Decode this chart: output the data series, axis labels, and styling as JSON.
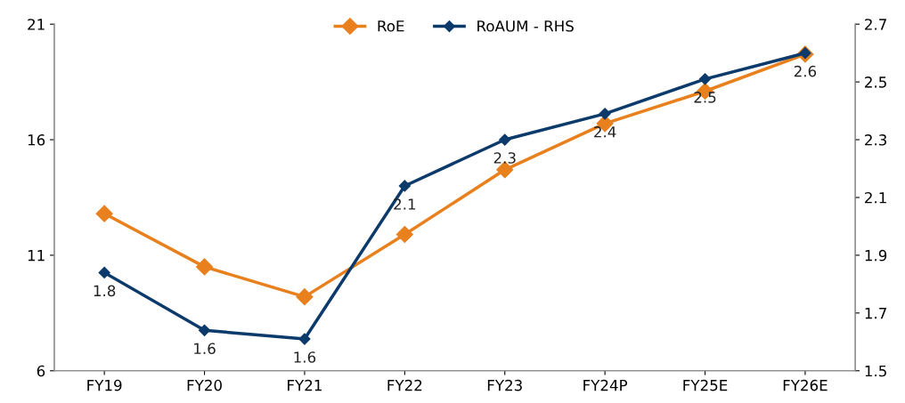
{
  "chart_data": {
    "type": "line",
    "categories": [
      "FY19",
      "FY20",
      "FY21",
      "FY22",
      "FY23",
      "FY24P",
      "FY25E",
      "FY26E"
    ],
    "series": [
      {
        "name": "RoE",
        "color": "#e8801e",
        "values": [
          12.8,
          10.5,
          9.2,
          11.9,
          14.7,
          16.7,
          18.1,
          19.7
        ]
      },
      {
        "name": "RoAUM - RHS",
        "color": "#0b3a6b",
        "axis": "y2",
        "values": [
          1.84,
          1.64,
          1.61,
          2.14,
          2.3,
          2.39,
          2.51,
          2.6
        ],
        "value_labels": [
          "1.8",
          "1.6",
          "1.6",
          "2.1",
          "2.3",
          "2.4",
          "2.5",
          "2.6"
        ]
      }
    ],
    "ylim": [
      6,
      21
    ],
    "yticks": [
      6,
      11,
      16,
      21
    ],
    "y2lim": [
      1.5,
      2.7
    ],
    "y2ticks": [
      {
        "value": 1.5,
        "label": "1.5"
      },
      {
        "value": 1.7,
        "label": "1.7"
      },
      {
        "value": 1.9,
        "label": "1.9"
      },
      {
        "value": 2.1,
        "label": "2.1"
      },
      {
        "value": 2.3,
        "label": "2.3"
      },
      {
        "value": 2.5,
        "label": "2.5"
      },
      {
        "value": 2.7,
        "label": "2.7"
      }
    ],
    "marker": "diamond",
    "line_style": "solid",
    "legend": "top",
    "grid": false
  }
}
